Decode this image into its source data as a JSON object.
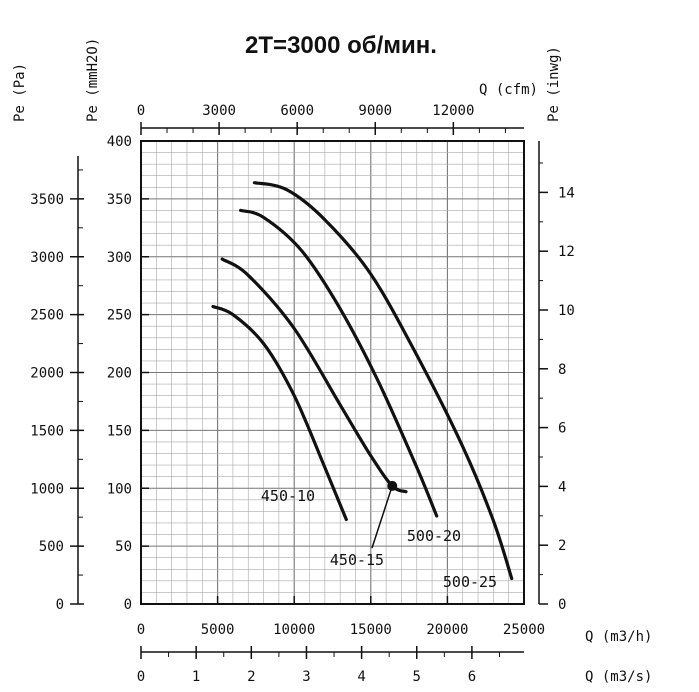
{
  "chart_data": {
    "type": "line",
    "title": "2T=3000 об/мин.",
    "xlabel": "Q (m3/h)",
    "ylabel": "Pe (mmH2O)",
    "xlim": [
      0,
      25000
    ],
    "ylim": [
      0,
      400
    ],
    "grid": true,
    "axes": {
      "y_pa": {
        "label": "Pe (Pa)",
        "ticks": [
          0,
          500,
          1000,
          1500,
          2000,
          2500,
          3000,
          3500
        ]
      },
      "y_mmh2o": {
        "label": "Pe (mmH2O)",
        "ticks": [
          0,
          50,
          100,
          150,
          200,
          250,
          300,
          350,
          400
        ]
      },
      "y_inwg": {
        "label": "Pe (inwg)",
        "ticks": [
          0,
          2,
          4,
          6,
          8,
          10,
          12,
          14
        ]
      },
      "x_cfm": {
        "label": "Q (cfm)",
        "ticks": [
          0,
          3000,
          6000,
          9000,
          12000
        ]
      },
      "x_m3h": {
        "label": "Q (m3/h)",
        "ticks": [
          0,
          5000,
          10000,
          15000,
          20000,
          25000
        ]
      },
      "x_m3s": {
        "label": "Q (m3/s)",
        "ticks": [
          0,
          1,
          2,
          3,
          4,
          5,
          6
        ]
      }
    },
    "series": [
      {
        "name": "450-10",
        "x": [
          4700,
          6000,
          8000,
          10000,
          12000,
          13400
        ],
        "y": [
          257,
          250,
          225,
          180,
          118,
          73
        ]
      },
      {
        "name": "450-15",
        "x": [
          5300,
          7000,
          10000,
          13000,
          15000,
          16400,
          17300
        ],
        "y": [
          298,
          284,
          238,
          172,
          128,
          102,
          97
        ]
      },
      {
        "name": "500-20",
        "x": [
          6500,
          8000,
          10500,
          13000,
          15500,
          18000,
          19300
        ],
        "y": [
          340,
          334,
          305,
          255,
          192,
          118,
          76
        ]
      },
      {
        "name": "500-25",
        "x": [
          7400,
          9500,
          12000,
          15000,
          18000,
          21000,
          23000,
          24200
        ],
        "y": [
          364,
          358,
          332,
          285,
          215,
          136,
          72,
          22
        ]
      }
    ],
    "marker": {
      "x": 16400,
      "y": 102,
      "series": "450-15"
    }
  }
}
